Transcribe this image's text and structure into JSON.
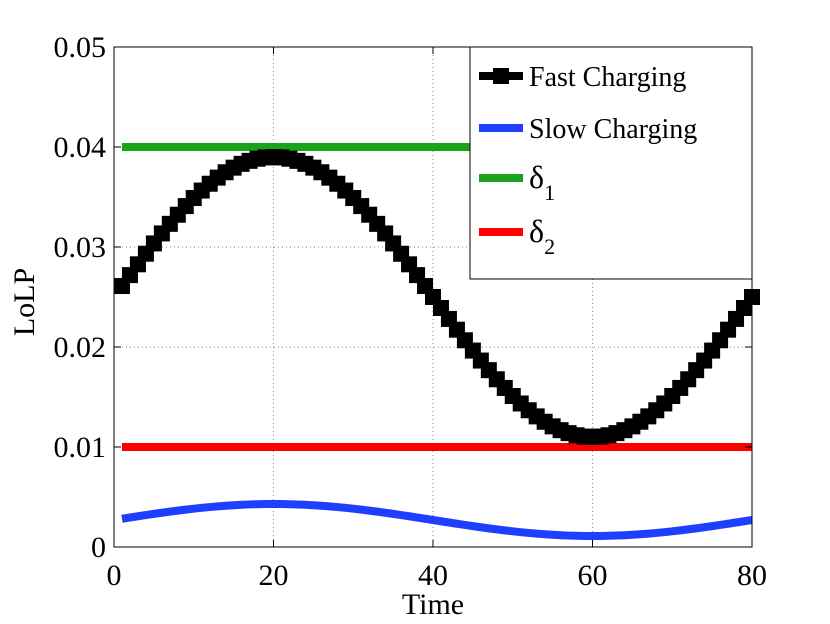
{
  "chart_data": {
    "type": "line",
    "title": "",
    "xlabel": "Time",
    "ylabel": "LoLP",
    "xlim": [
      0,
      80
    ],
    "ylim": [
      0,
      0.05
    ],
    "grid": true,
    "xticks": [
      0,
      20,
      40,
      60,
      80
    ],
    "xtick_labels": [
      "0",
      "20",
      "40",
      "60",
      "80"
    ],
    "yticks": [
      0,
      0.01,
      0.02,
      0.03,
      0.04,
      0.05
    ],
    "ytick_labels": [
      "0",
      "0.01",
      "0.02",
      "0.03",
      "0.04",
      "0.05"
    ],
    "legend_position": "top-right",
    "series": [
      {
        "name": "Fast Charging",
        "legend_label": "Fast Charging",
        "color": "#000000",
        "marker": "square",
        "x_start": 1,
        "x_end": 80,
        "x_step": 1,
        "model": "sinusoid",
        "mean": 0.025,
        "amplitude": 0.014,
        "peak_x": 20,
        "period": 80,
        "sample_points": {
          "x": [
            1,
            20,
            40,
            60,
            80
          ],
          "y": [
            0.0236,
            0.039,
            0.025,
            0.0112,
            0.0225
          ]
        }
      },
      {
        "name": "Slow Charging",
        "legend_label": "Slow Charging",
        "color": "#1f3fff",
        "marker": "none",
        "x_start": 1,
        "x_end": 80,
        "x_step": 1,
        "model": "sinusoid",
        "mean": 0.0027,
        "amplitude": 0.0016,
        "peak_x": 20,
        "period": 80,
        "sample_points": {
          "x": [
            1,
            20,
            40,
            60,
            80
          ],
          "y": [
            0.0025,
            0.0043,
            0.0027,
            0.0011,
            0.0024
          ]
        }
      },
      {
        "name": "delta1",
        "legend_label": "δ",
        "legend_subscript": "1",
        "color": "#1aa31a",
        "marker": "none",
        "x": [
          1,
          80
        ],
        "y": [
          0.04,
          0.04
        ]
      },
      {
        "name": "delta2",
        "legend_label": "δ",
        "legend_subscript": "2",
        "color": "#ff0000",
        "marker": "none",
        "x": [
          1,
          80
        ],
        "y": [
          0.01,
          0.01
        ]
      }
    ]
  }
}
